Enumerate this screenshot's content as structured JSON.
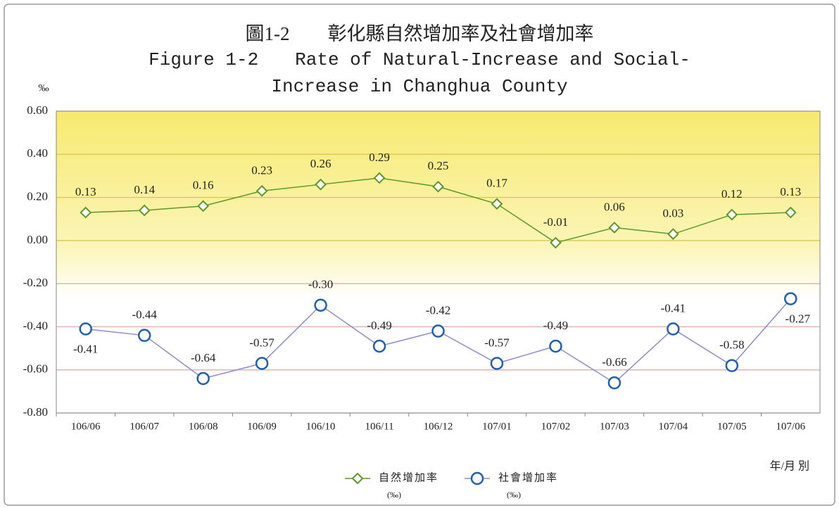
{
  "chart_data": {
    "type": "line",
    "title": "圖1-2　　彰化縣自然增加率及社會增加率",
    "subtitle": "Figure 1-2　　Rate of Natural-Increase and Social-Increase in Changhua County",
    "y_unit": "‰",
    "x_label": "年/月 別",
    "categories": [
      "106/06",
      "106/07",
      "106/08",
      "106/09",
      "106/10",
      "106/11",
      "106/12",
      "107/01",
      "107/02",
      "107/03",
      "107/04",
      "107/05",
      "107/06"
    ],
    "series": [
      {
        "name": "自然增加率",
        "name_unit": "(‰)",
        "color": "#5a9a2a",
        "marker": "diamond",
        "negative_label_color": "#d03010",
        "values": [
          0.13,
          0.14,
          0.16,
          0.23,
          0.26,
          0.29,
          0.25,
          0.17,
          -0.01,
          0.06,
          0.03,
          0.12,
          0.13
        ],
        "value_labels": [
          "0.13",
          "0.14",
          "0.16",
          "0.23",
          "0.26",
          "0.29",
          "0.25",
          "0.17",
          "-0.01",
          "0.06",
          "0.03",
          "0.12",
          "0.13"
        ]
      },
      {
        "name": "社會增加率",
        "name_unit": "(‰)",
        "color": "#1f5fb0",
        "line_color": "#8c8cc8",
        "marker": "circle",
        "values": [
          -0.41,
          -0.44,
          -0.64,
          -0.57,
          -0.3,
          -0.49,
          -0.42,
          -0.57,
          -0.49,
          -0.66,
          -0.41,
          -0.58,
          -0.27
        ],
        "value_labels": [
          "-0.41",
          "-0.44",
          "-0.64",
          "-0.57",
          "-0.30",
          "-0.49",
          "-0.42",
          "-0.57",
          "-0.49",
          "-0.66",
          "-0.41",
          "-0.58",
          "-0.27"
        ]
      }
    ],
    "ylim": [
      -0.8,
      0.6
    ],
    "yticks": [
      {
        "value": -0.8,
        "label": "-0.80"
      },
      {
        "value": -0.6,
        "label": "-0.60"
      },
      {
        "value": -0.4,
        "label": "-0.40"
      },
      {
        "value": -0.2,
        "label": "-0.20"
      },
      {
        "value": 0,
        "label": "0.00"
      },
      {
        "value": 0.2,
        "label": "0.20"
      },
      {
        "value": 0.4,
        "label": "0.40"
      },
      {
        "value": 0.6,
        "label": "0.60"
      }
    ],
    "grid": true
  }
}
